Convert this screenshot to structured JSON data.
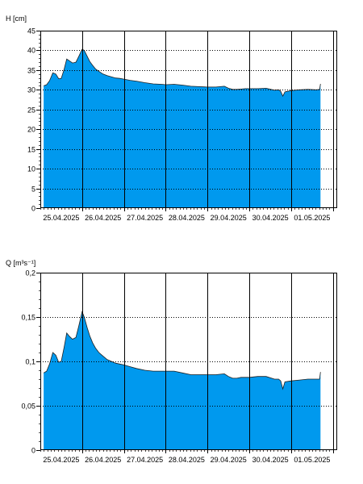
{
  "chart_data": [
    {
      "type": "area",
      "ylabel": "H [cm]",
      "ylim": [
        0,
        45
      ],
      "yticks": [
        0,
        5,
        10,
        15,
        20,
        25,
        30,
        35,
        40,
        45
      ],
      "ytick_labels": [
        "0",
        "5",
        "10",
        "15",
        "20",
        "25",
        "30",
        "35",
        "40",
        "45"
      ],
      "xlim": [
        0,
        7.1
      ],
      "xticks": [
        0,
        1,
        2,
        3,
        4,
        5,
        6,
        7
      ],
      "x_labels": [
        "25.04.2025",
        "26.04.2025",
        "27.04.2025",
        "28.04.2025",
        "29.04.2025",
        "30.04.2025",
        "01.05.2025"
      ],
      "x_label_positions": [
        0.5,
        1.5,
        2.5,
        3.5,
        4.5,
        5.5,
        6.5
      ],
      "grid": true,
      "fill_color": "#0099ee",
      "line_color": "#202020",
      "x": [
        0.08,
        0.15,
        0.22,
        0.3,
        0.37,
        0.44,
        0.5,
        0.57,
        0.63,
        0.7,
        0.77,
        0.85,
        0.92,
        1.0,
        1.05,
        1.12,
        1.18,
        1.25,
        1.32,
        1.4,
        1.5,
        1.6,
        1.7,
        1.8,
        1.9,
        2.0,
        2.15,
        2.3,
        2.5,
        2.7,
        2.9,
        3.0,
        3.2,
        3.4,
        3.6,
        3.8,
        4.0,
        4.2,
        4.4,
        4.5,
        4.6,
        4.7,
        4.8,
        4.9,
        5.0,
        5.2,
        5.4,
        5.6,
        5.7,
        5.75,
        5.8,
        5.85,
        6.0,
        6.2,
        6.4,
        6.6,
        6.68,
        6.7
      ],
      "values": [
        31.0,
        31.3,
        32.3,
        34.3,
        34.0,
        32.8,
        32.9,
        35.2,
        37.8,
        37.3,
        36.8,
        37.0,
        38.5,
        40.3,
        40.0,
        38.5,
        37.2,
        36.2,
        35.3,
        34.7,
        34.0,
        33.6,
        33.3,
        33.0,
        32.9,
        32.7,
        32.4,
        32.2,
        31.8,
        31.5,
        31.4,
        31.3,
        31.4,
        31.2,
        30.9,
        30.8,
        30.7,
        30.7,
        30.9,
        30.4,
        30.1,
        30.1,
        30.2,
        30.3,
        30.3,
        30.3,
        30.4,
        29.9,
        30.0,
        29.6,
        28.4,
        29.5,
        29.8,
        30.0,
        30.1,
        30.0,
        30.1,
        31.5
      ]
    },
    {
      "type": "area",
      "ylabel": "Q [m³s⁻¹]",
      "ylim": [
        0,
        0.2
      ],
      "yticks": [
        0,
        0.05,
        0.1,
        0.15,
        0.2
      ],
      "ytick_labels": [
        "0",
        "0,05",
        "0,1",
        "0,15",
        "0,2"
      ],
      "xlim": [
        0,
        7.1
      ],
      "xticks": [
        0,
        1,
        2,
        3,
        4,
        5,
        6,
        7
      ],
      "x_labels": [
        "25.04.2025",
        "26.04.2025",
        "27.04.2025",
        "28.04.2025",
        "29.04.2025",
        "30.04.2025",
        "01.05.2025"
      ],
      "x_label_positions": [
        0.5,
        1.5,
        2.5,
        3.5,
        4.5,
        5.5,
        6.5
      ],
      "grid": true,
      "fill_color": "#0099ee",
      "line_color": "#202020",
      "x": [
        0.08,
        0.15,
        0.22,
        0.3,
        0.37,
        0.44,
        0.5,
        0.57,
        0.63,
        0.7,
        0.77,
        0.85,
        0.92,
        1.0,
        1.05,
        1.12,
        1.18,
        1.25,
        1.32,
        1.4,
        1.5,
        1.6,
        1.7,
        1.8,
        1.9,
        2.0,
        2.15,
        2.3,
        2.5,
        2.7,
        2.9,
        3.0,
        3.2,
        3.4,
        3.6,
        3.8,
        4.0,
        4.2,
        4.4,
        4.5,
        4.6,
        4.7,
        4.8,
        4.9,
        5.0,
        5.2,
        5.4,
        5.6,
        5.7,
        5.75,
        5.8,
        5.85,
        6.0,
        6.2,
        6.4,
        6.6,
        6.68,
        6.7
      ],
      "values": [
        0.087,
        0.089,
        0.097,
        0.11,
        0.107,
        0.099,
        0.1,
        0.116,
        0.132,
        0.128,
        0.125,
        0.127,
        0.14,
        0.156,
        0.15,
        0.138,
        0.129,
        0.121,
        0.115,
        0.11,
        0.106,
        0.102,
        0.1,
        0.098,
        0.097,
        0.096,
        0.094,
        0.092,
        0.09,
        0.089,
        0.089,
        0.089,
        0.089,
        0.087,
        0.085,
        0.085,
        0.085,
        0.085,
        0.086,
        0.083,
        0.081,
        0.081,
        0.082,
        0.082,
        0.082,
        0.083,
        0.083,
        0.08,
        0.08,
        0.078,
        0.069,
        0.077,
        0.078,
        0.079,
        0.08,
        0.08,
        0.08,
        0.088
      ]
    }
  ]
}
